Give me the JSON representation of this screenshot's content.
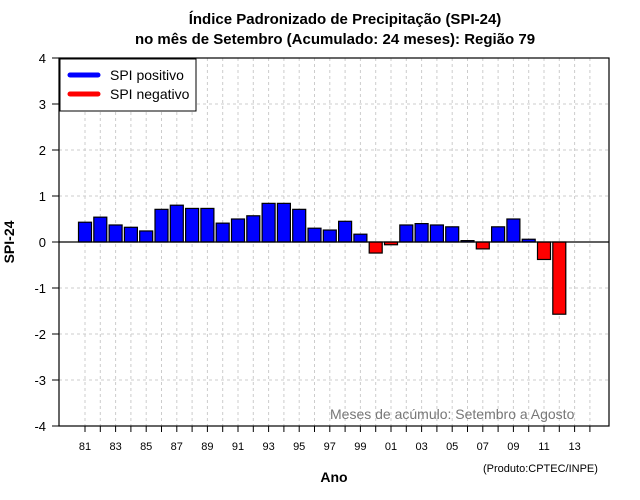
{
  "chart_data": {
    "type": "bar",
    "title": "Índice Padronizado de Precipitação (SPI-24)",
    "subtitle": "no mês de Setembro (Acumulado: 24 meses): Região 79",
    "xlabel": "Ano",
    "ylabel": "SPI-24",
    "ylim": [
      -4,
      4
    ],
    "yticks": [
      "4",
      "3",
      "2",
      "1",
      "0",
      "-1",
      "-2",
      "-3",
      "-4"
    ],
    "ytick_values": [
      4,
      3,
      2,
      1,
      0,
      -1,
      -2,
      -3,
      -4
    ],
    "xlim_years": [
      1981,
      2014
    ],
    "xtick_labels": [
      "81",
      "83",
      "85",
      "87",
      "89",
      "91",
      "93",
      "95",
      "97",
      "99",
      "01",
      "03",
      "05",
      "07",
      "09",
      "11",
      "13"
    ],
    "xtick_years": [
      1981,
      1983,
      1985,
      1987,
      1989,
      1991,
      1993,
      1995,
      1997,
      1999,
      2001,
      2003,
      2005,
      2007,
      2009,
      2011,
      2013
    ],
    "grid": true,
    "legend_position": "top-left",
    "legend": [
      {
        "label": "SPI positivo",
        "color": "#0000ff"
      },
      {
        "label": "SPI negativo",
        "color": "#ff0000"
      }
    ],
    "annotation": "Meses de acúmulo: Setembro a Agosto",
    "credit": "(Produto:CPTEC/INPE)",
    "colors": {
      "positive": "#0000ff",
      "negative": "#ff0000",
      "grid": "#cccccc"
    },
    "categories": [
      1981,
      1982,
      1983,
      1984,
      1985,
      1986,
      1987,
      1988,
      1989,
      1990,
      1991,
      1992,
      1993,
      1994,
      1995,
      1996,
      1997,
      1998,
      1999,
      2000,
      2001,
      2002,
      2003,
      2004,
      2005,
      2006,
      2007,
      2008,
      2009,
      2010,
      2011,
      2012
    ],
    "values": [
      0.43,
      0.54,
      0.37,
      0.32,
      0.24,
      0.71,
      0.8,
      0.73,
      0.73,
      0.41,
      0.5,
      0.57,
      0.84,
      0.84,
      0.71,
      0.3,
      0.26,
      0.45,
      0.17,
      -0.24,
      -0.06,
      0.37,
      0.4,
      0.37,
      0.33,
      0.03,
      -0.15,
      0.33,
      0.5,
      0.06,
      -0.38,
      -1.57
    ]
  }
}
